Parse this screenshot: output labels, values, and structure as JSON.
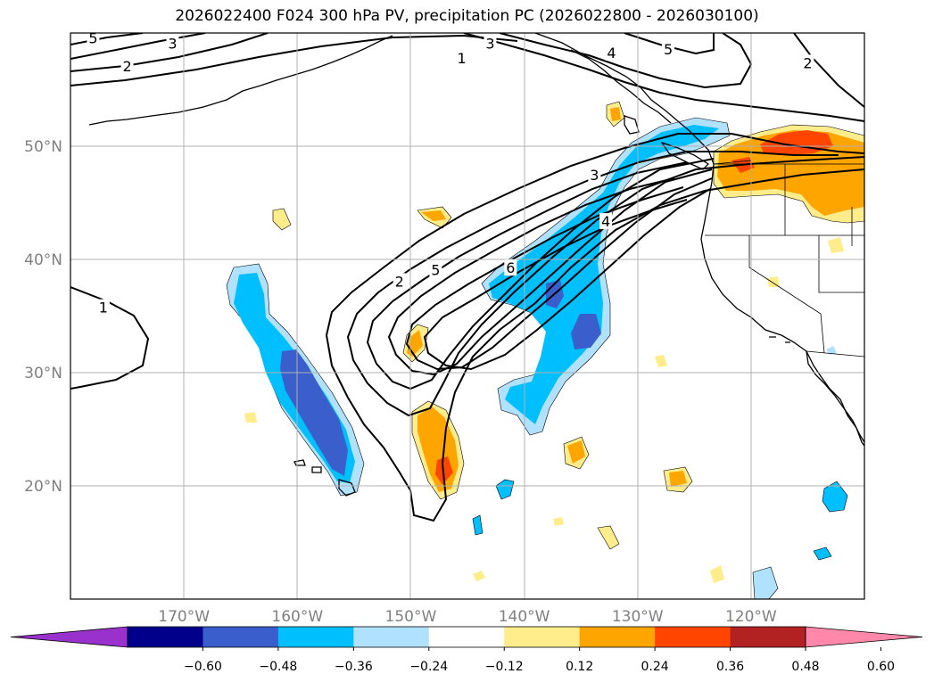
{
  "title": "2026022400 F024 300 hPa PV, precipitation PC (2026022800 - 2026030100)",
  "map": {
    "projection": "equirectangular",
    "lon_range": [
      -180,
      -110
    ],
    "lat_range": [
      10,
      60
    ],
    "gridlines": true,
    "lon_ticks": [
      {
        "value": -170,
        "label": "170°W"
      },
      {
        "value": -160,
        "label": "160°W"
      },
      {
        "value": -150,
        "label": "150°W"
      },
      {
        "value": -140,
        "label": "140°W"
      },
      {
        "value": -130,
        "label": "130°W"
      },
      {
        "value": -120,
        "label": "120°W"
      }
    ],
    "lat_ticks": [
      {
        "value": 20,
        "label": "20°N"
      },
      {
        "value": 30,
        "label": "30°N"
      },
      {
        "value": 40,
        "label": "40°N"
      },
      {
        "value": 50,
        "label": "50°N"
      }
    ]
  },
  "pv_contours": {
    "color": "#000000",
    "labels": [
      {
        "text": "5",
        "lon": -178.0,
        "lat": 59.5
      },
      {
        "text": "3",
        "lon": -171.0,
        "lat": 59.0
      },
      {
        "text": "2",
        "lon": -175.0,
        "lat": 57.0
      },
      {
        "text": "3",
        "lon": -143.0,
        "lat": 59.0
      },
      {
        "text": "1",
        "lon": -145.5,
        "lat": 57.7
      },
      {
        "text": "4",
        "lon": -132.3,
        "lat": 58.2
      },
      {
        "text": "5",
        "lon": -127.3,
        "lat": 58.5
      },
      {
        "text": "2",
        "lon": -115.0,
        "lat": 57.3
      },
      {
        "text": "3",
        "lon": -133.8,
        "lat": 47.4
      },
      {
        "text": "4",
        "lon": -132.8,
        "lat": 43.3
      },
      {
        "text": "6",
        "lon": -141.2,
        "lat": 39.2
      },
      {
        "text": "5",
        "lon": -147.8,
        "lat": 39.0
      },
      {
        "text": "2",
        "lon": -151.0,
        "lat": 38.0
      },
      {
        "text": "1",
        "lon": -177.1,
        "lat": 35.7
      }
    ]
  },
  "precip_pc": {
    "colorbar": {
      "levels": [
        "−0.60",
        "−0.48",
        "−0.36",
        "−0.24",
        "−0.12",
        "0.12",
        "0.24",
        "0.36",
        "0.48",
        "0.60"
      ],
      "colors": [
        "#9932CC",
        "#00008B",
        "#3A5FCD",
        "#00BFFF",
        "#B0E2FF",
        "#FFFFFF",
        "#FFEC8B",
        "#FFA500",
        "#FF4500",
        "#B22222",
        "#FF88AA"
      ],
      "extend": "both"
    }
  }
}
